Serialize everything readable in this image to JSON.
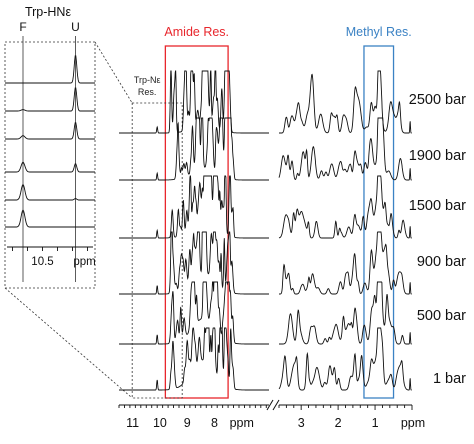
{
  "chart_data": {
    "type": "line",
    "xlabel": "ppm",
    "x_axis": {
      "reversed": true,
      "broken": true,
      "segments": [
        {
          "range": [
            11.5,
            6.0
          ],
          "ticks": [
            "11",
            "10",
            "9",
            "8"
          ],
          "tick_values": [
            11,
            10,
            9,
            8
          ]
        },
        {
          "range": [
            3.6,
            0.0
          ],
          "ticks": [
            "3",
            "2",
            "1"
          ],
          "tick_values": [
            3,
            2,
            1
          ]
        }
      ]
    },
    "annotations": {
      "amide_box": {
        "label": "Amide Res.",
        "color": "#e8262c",
        "range_ppm": [
          9.8,
          7.5
        ]
      },
      "methyl_box": {
        "label": "Methyl Res.",
        "color": "#3b82c4",
        "range_ppm": [
          1.3,
          0.5
        ]
      },
      "trp_label": [
        "Trp-Nε",
        "Res."
      ],
      "trp_peak_ppm": 10.1
    },
    "series": [
      {
        "name": "2500 bar"
      },
      {
        "name": "1900 bar"
      },
      {
        "name": "1500 bar"
      },
      {
        "name": "900 bar"
      },
      {
        "name": "500 bar"
      },
      {
        "name": "1 bar"
      }
    ],
    "inset": {
      "title": "Trp-HNε",
      "peak_labels": [
        "F",
        "U"
      ],
      "peak_ppm": {
        "F": 10.63,
        "U": 10.28
      },
      "xlabel": "ppm",
      "ticks": [
        "10.5"
      ],
      "tick_values": [
        10.5
      ],
      "range_ppm": [
        10.75,
        10.15
      ],
      "traces": [
        {
          "F": 0.0,
          "U": 1.0
        },
        {
          "F": 0.05,
          "U": 0.85
        },
        {
          "F": 0.12,
          "U": 0.6
        },
        {
          "F": 0.35,
          "U": 0.3
        },
        {
          "F": 0.55,
          "U": 0.05
        },
        {
          "F": 0.6,
          "U": 0.0
        }
      ]
    }
  }
}
